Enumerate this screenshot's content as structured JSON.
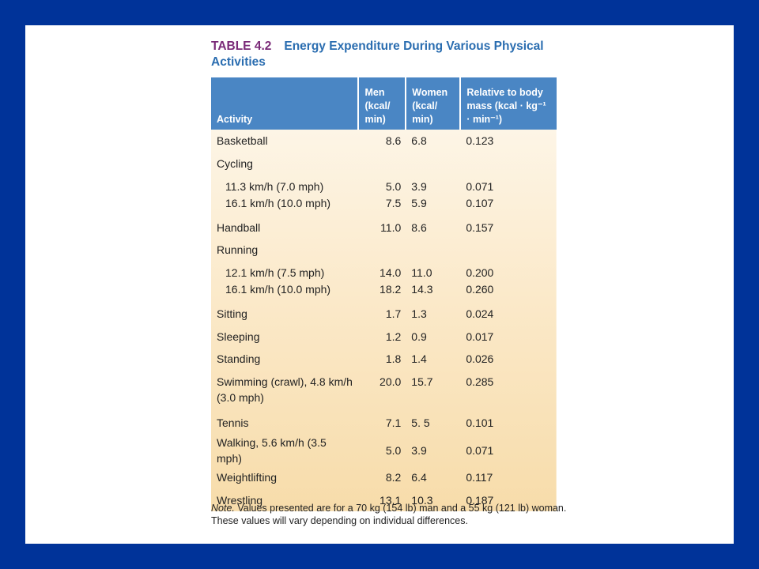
{
  "caption": {
    "number": "TABLE 4.2",
    "title": "Energy Expenditure During Various Physical Activities"
  },
  "table": {
    "headers": {
      "activity": "Activity",
      "men": "Men (kcal/ min)",
      "women": "Women (kcal/ min)",
      "relative": "Relative to body mass (kcal · kg⁻¹ · min⁻¹)"
    },
    "rows": [
      {
        "activity": "Basketball",
        "men": "8.6",
        "women": "6.8",
        "relative": "0.123"
      },
      {
        "activity": "Cycling",
        "men": "",
        "women": "",
        "relative": ""
      },
      {
        "activity": "11.3 km/h (7.0 mph)",
        "men": "5.0",
        "women": "3.9",
        "relative": "0.071"
      },
      {
        "activity": "16.1 km/h (10.0 mph)",
        "men": "7.5",
        "women": "5.9",
        "relative": "0.107"
      },
      {
        "activity": "Handball",
        "men": "11.0",
        "women": "8.6",
        "relative": "0.157"
      },
      {
        "activity": "Running",
        "men": "",
        "women": "",
        "relative": ""
      },
      {
        "activity": "12.1 km/h (7.5 mph)",
        "men": "14.0",
        "women": "11.0",
        "relative": "0.200"
      },
      {
        "activity": "16.1 km/h (10.0 mph)",
        "men": "18.2",
        "women": "14.3",
        "relative": "0.260"
      },
      {
        "activity": "Sitting",
        "men": "1.7",
        "women": "1.3",
        "relative": "0.024"
      },
      {
        "activity": "Sleeping",
        "men": "1.2",
        "women": "0.9",
        "relative": "0.017"
      },
      {
        "activity": "Standing",
        "men": "1.8",
        "women": "1.4",
        "relative": "0.026"
      },
      {
        "activity": "Swimming (crawl), 4.8 km/h (3.0 mph)",
        "men": "20.0",
        "women": "15.7",
        "relative": "0.285"
      },
      {
        "activity": "Tennis",
        "men": "7.1",
        "women": "5. 5",
        "relative": "0.101"
      },
      {
        "activity": "Walking, 5.6 km/h (3.5 mph)",
        "men": "5.0",
        "women": "3.9",
        "relative": "0.071"
      },
      {
        "activity": "Weightlifting",
        "men": "8.2",
        "women": "6.4",
        "relative": "0.117"
      },
      {
        "activity": "Wrestling",
        "men": "13.1",
        "women": "10.3",
        "relative": "0.187"
      }
    ]
  },
  "note": {
    "label": "Note.",
    "text": "Values presented are for a 70 kg (154 lb) man and a 55 kg (121 lb) woman. These values will vary depending on individual differences."
  },
  "colors": {
    "frame": "#003399",
    "header_fill": "#4a86c4",
    "caption_number": "#7a2a78",
    "caption_title": "#2a6db0",
    "body_fill": "#fbe9c9"
  }
}
